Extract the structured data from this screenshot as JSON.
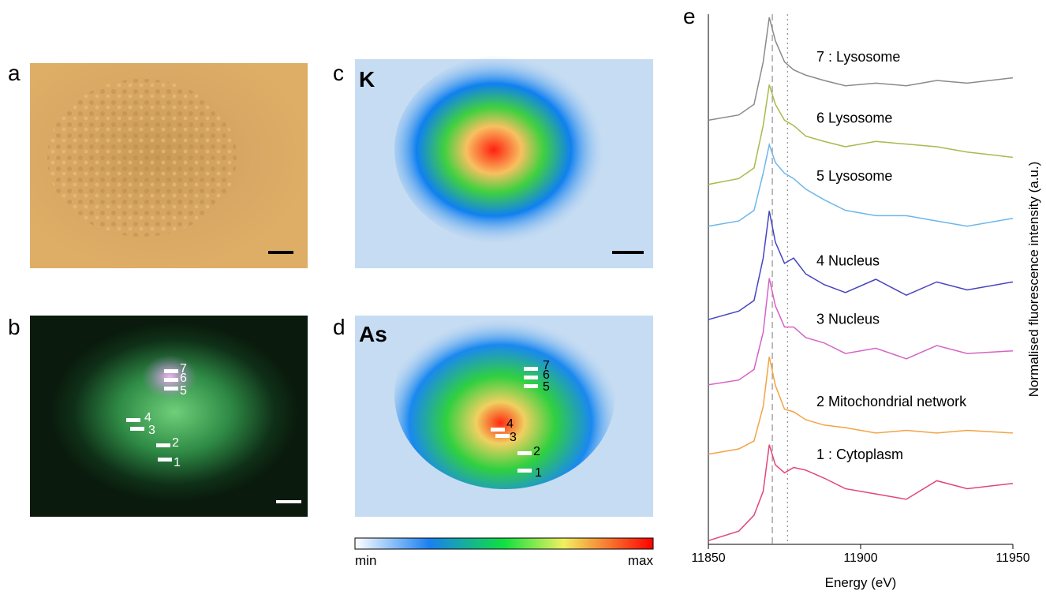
{
  "panels": {
    "a": {
      "letter": "a"
    },
    "b": {
      "letter": "b",
      "markers": [
        "7",
        "6",
        "5",
        "4",
        "3",
        "2",
        "1"
      ]
    },
    "c": {
      "letter": "c",
      "element": "K"
    },
    "d": {
      "letter": "d",
      "element": "As",
      "markers": [
        "7",
        "6",
        "5",
        "4",
        "3",
        "2",
        "1"
      ]
    },
    "colorbar": {
      "min": "min",
      "max": "max"
    }
  },
  "chart_data": {
    "type": "line",
    "letter": "e",
    "xlabel": "Energy (eV)",
    "ylabel": "Normalised fluorescence intensity (a.u.)",
    "x": [
      11850,
      11860,
      11865,
      11868,
      11870,
      11872,
      11875,
      11878,
      11882,
      11888,
      11895,
      11905,
      11915,
      11925,
      11935,
      11950
    ],
    "xlim": [
      11850,
      11950
    ],
    "xticks": [
      11850,
      11900,
      11950
    ],
    "ylim": [
      0,
      10
    ],
    "reference_lines": [
      11871,
      11876
    ],
    "series": [
      {
        "name": "7 : Lysosome",
        "color": "#8a8a8a",
        "values": [
          8.0,
          8.1,
          8.3,
          9.1,
          9.94,
          9.5,
          9.1,
          8.95,
          8.85,
          8.75,
          8.65,
          8.7,
          8.65,
          8.75,
          8.7,
          8.8
        ]
      },
      {
        "name": "6 Lysosome",
        "color": "#a9b94c",
        "values": [
          6.79,
          6.9,
          7.1,
          7.9,
          8.67,
          8.3,
          8.0,
          7.9,
          7.7,
          7.6,
          7.5,
          7.6,
          7.55,
          7.5,
          7.4,
          7.3
        ]
      },
      {
        "name": "5 Lysosome",
        "color": "#6db6ea",
        "values": [
          6.0,
          6.1,
          6.3,
          7.0,
          7.54,
          7.2,
          7.0,
          6.9,
          6.7,
          6.5,
          6.3,
          6.2,
          6.2,
          6.1,
          6.0,
          6.15
        ]
      },
      {
        "name": "4 Nucleus",
        "color": "#4444c2",
        "values": [
          4.24,
          4.4,
          4.6,
          5.4,
          6.29,
          5.7,
          5.3,
          5.4,
          5.1,
          4.9,
          4.75,
          5.0,
          4.7,
          4.95,
          4.8,
          4.95
        ]
      },
      {
        "name": "3 Nucleus",
        "color": "#d563c6",
        "values": [
          3.01,
          3.1,
          3.3,
          4.0,
          5.02,
          4.5,
          4.1,
          4.1,
          3.9,
          3.8,
          3.6,
          3.7,
          3.5,
          3.75,
          3.6,
          3.65
        ]
      },
      {
        "name": "2 Mitochondrial network",
        "color": "#f2a446",
        "values": [
          1.7,
          1.8,
          1.95,
          2.6,
          3.54,
          3.0,
          2.55,
          2.5,
          2.35,
          2.25,
          2.2,
          2.1,
          2.15,
          2.1,
          2.15,
          2.1
        ]
      },
      {
        "name": "1 : Cytoplasm",
        "color": "#e2457a",
        "values": [
          0.07,
          0.25,
          0.55,
          1.0,
          1.88,
          1.5,
          1.35,
          1.45,
          1.4,
          1.25,
          1.05,
          0.95,
          0.85,
          1.2,
          1.05,
          1.15
        ]
      }
    ]
  }
}
